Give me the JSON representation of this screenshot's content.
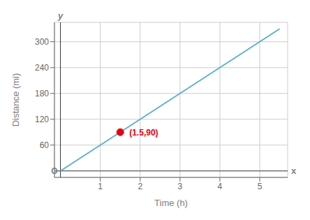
{
  "chart_data": {
    "type": "line",
    "x_label": "Time (h)",
    "y_label": "Distance (mi)",
    "x": [
      0,
      5.5
    ],
    "values": [
      0,
      330
    ],
    "color": "#5bafd6",
    "xlim": [
      -0.15,
      5.7
    ],
    "ylim": [
      -15,
      345
    ],
    "xticks": [
      1,
      2,
      3,
      4,
      5
    ],
    "yticks": [
      60,
      120,
      180,
      240,
      300
    ],
    "grid": true,
    "annotations": [
      {
        "x": 1.5,
        "y": 90,
        "text": "(1.5,90)",
        "color": "#e8000e",
        "marker": "circle"
      }
    ],
    "origin_label": "O",
    "x_axis_symbol": "x",
    "y_axis_symbol": "y"
  }
}
